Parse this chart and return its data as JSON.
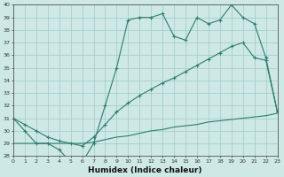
{
  "line1_x": [
    0,
    1,
    2,
    3,
    4,
    5,
    6,
    7,
    8,
    9,
    10,
    11,
    12,
    13,
    14,
    15,
    16,
    17,
    18,
    19,
    20,
    21,
    22,
    23
  ],
  "line1_y": [
    31,
    30,
    29,
    29,
    28.5,
    27.5,
    27.5,
    29,
    32,
    35,
    38.8,
    39,
    39,
    39.3,
    37.5,
    37.2,
    39,
    38.5,
    38.8,
    40,
    39,
    38.5,
    35.8,
    31.5
  ],
  "line1_markers": true,
  "line2_x": [
    0,
    1,
    2,
    3,
    4,
    5,
    6,
    7,
    8,
    9,
    10,
    11,
    12,
    13,
    14,
    15,
    16,
    17,
    18,
    19,
    20,
    21,
    22,
    23
  ],
  "line2_y": [
    31.0,
    30.5,
    30.0,
    29.5,
    29.2,
    29.0,
    28.8,
    29.5,
    30.5,
    31.5,
    32.2,
    32.8,
    33.3,
    33.8,
    34.2,
    34.7,
    35.2,
    35.7,
    36.2,
    36.7,
    37.0,
    35.8,
    35.6,
    31.5
  ],
  "line2_markers": true,
  "line3_x": [
    0,
    1,
    2,
    3,
    4,
    5,
    6,
    7,
    8,
    9,
    10,
    11,
    12,
    13,
    14,
    15,
    16,
    17,
    18,
    19,
    20,
    21,
    22,
    23
  ],
  "line3_y": [
    29.0,
    29.0,
    29.0,
    29.0,
    29.0,
    29.0,
    29.0,
    29.1,
    29.3,
    29.5,
    29.6,
    29.8,
    30.0,
    30.1,
    30.3,
    30.4,
    30.5,
    30.7,
    30.8,
    30.9,
    31.0,
    31.1,
    31.2,
    31.4
  ],
  "line3_markers": false,
  "color": "#2e7d6e",
  "bg_color": "#cde8e5",
  "grid_color": "#9fcbc7",
  "xlabel": "Humidex (Indice chaleur)",
  "ylim": [
    28,
    40
  ],
  "xlim": [
    0,
    23
  ],
  "yticks": [
    28,
    29,
    30,
    31,
    32,
    33,
    34,
    35,
    36,
    37,
    38,
    39,
    40
  ],
  "xticks": [
    0,
    1,
    2,
    3,
    4,
    5,
    6,
    7,
    8,
    9,
    10,
    11,
    12,
    13,
    14,
    15,
    16,
    17,
    18,
    19,
    20,
    21,
    22,
    23
  ]
}
